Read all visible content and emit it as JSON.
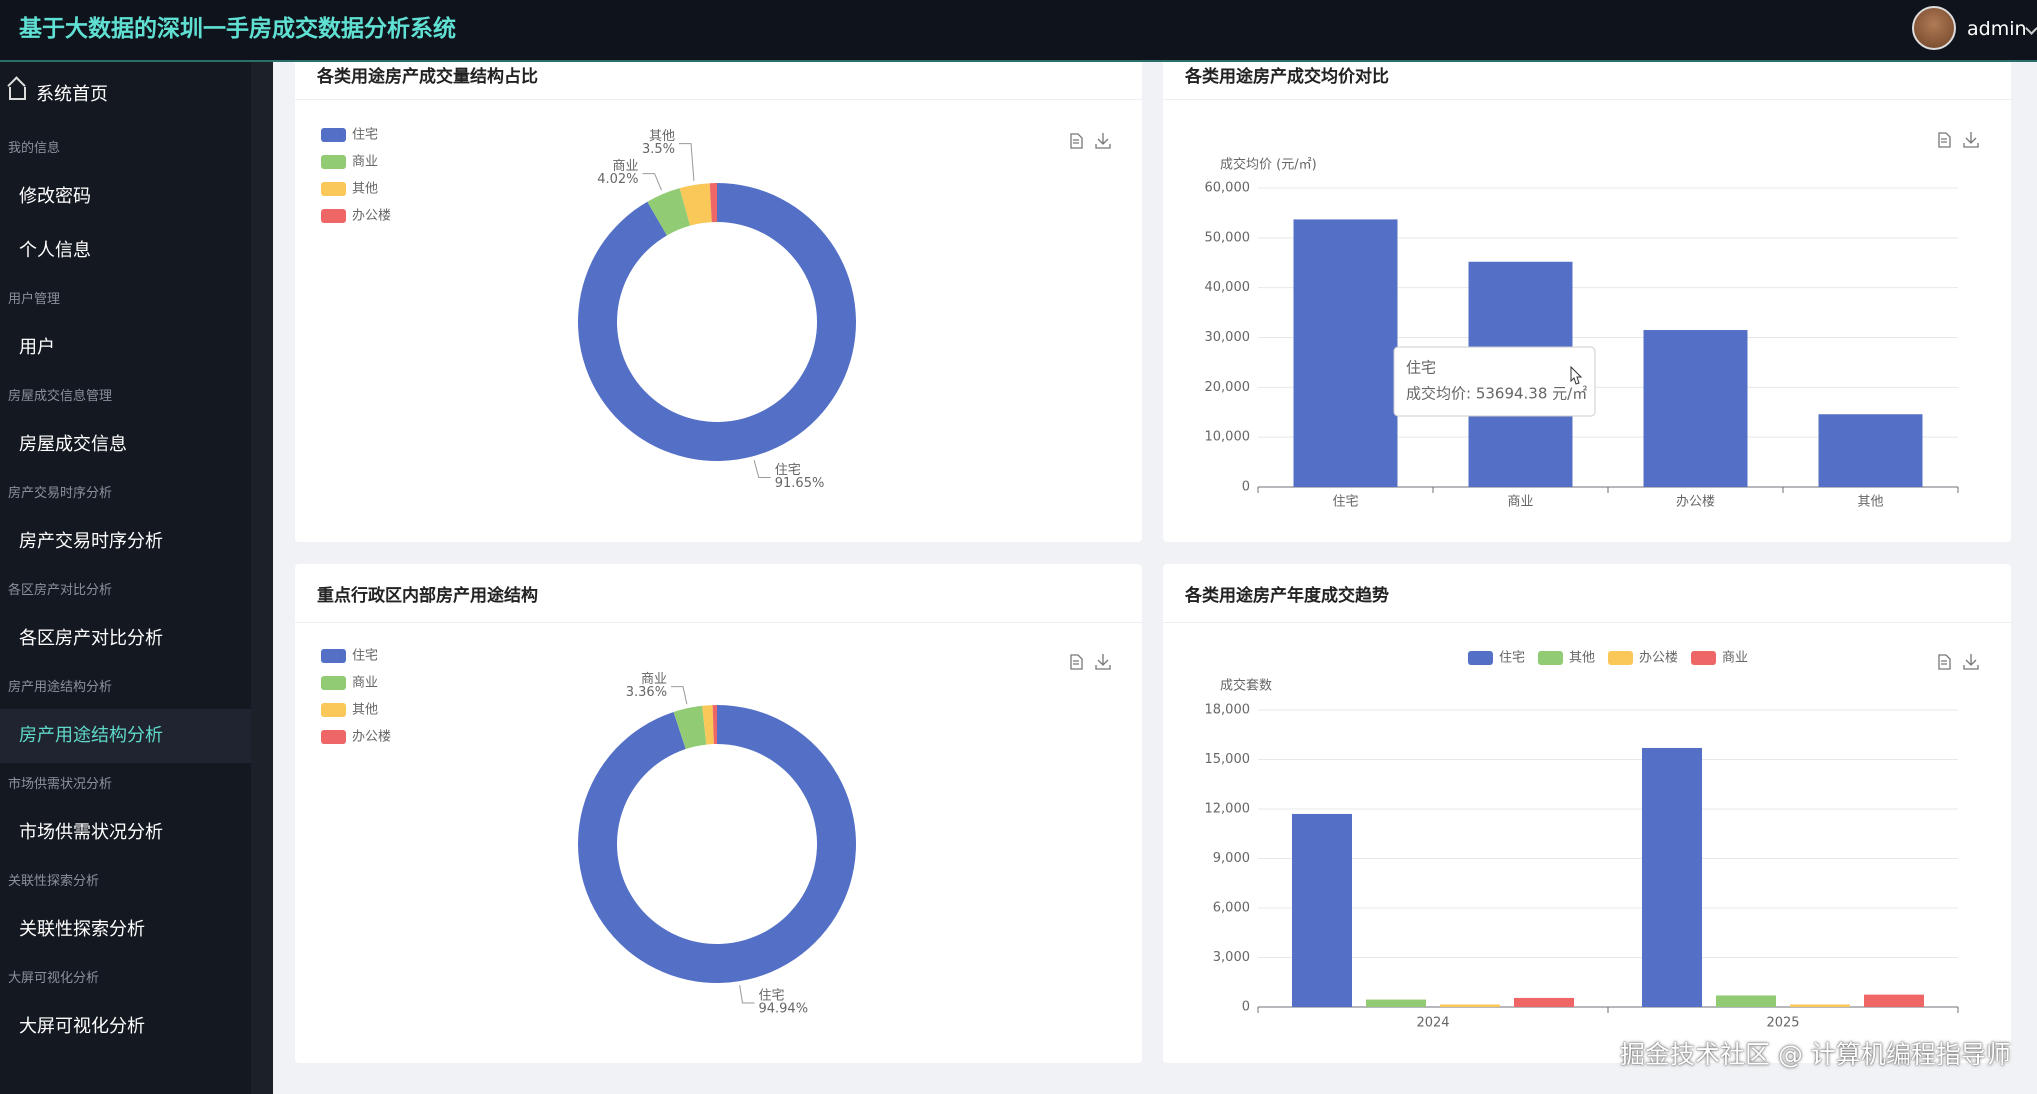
{
  "header": {
    "title": "基于大数据的深圳一手房成交数据分析系统",
    "user": "admin"
  },
  "sidebar": {
    "home": "系统首页",
    "groups": [
      {
        "label": "我的信息",
        "items": [
          "修改密码",
          "个人信息"
        ]
      },
      {
        "label": "用户管理",
        "items": [
          "用户"
        ]
      },
      {
        "label": "房屋成交信息管理",
        "items": [
          "房屋成交信息"
        ]
      },
      {
        "label": "房产交易时序分析",
        "items": [
          "房产交易时序分析"
        ]
      },
      {
        "label": "各区房产对比分析",
        "items": [
          "各区房产对比分析"
        ]
      },
      {
        "label": "房产用途结构分析",
        "items": [
          "房产用途结构分析"
        ]
      },
      {
        "label": "市场供需状况分析",
        "items": [
          "市场供需状况分析"
        ]
      },
      {
        "label": "关联性探索分析",
        "items": [
          "关联性探索分析"
        ]
      },
      {
        "label": "大屏可视化分析",
        "items": [
          "大屏可视化分析"
        ]
      }
    ],
    "active": {
      "group": 5,
      "item": 0
    }
  },
  "chart_data": [
    {
      "type": "pie",
      "title": "各类用途房产成交量结构占比",
      "categories": [
        "住宅",
        "商业",
        "其他",
        "办公楼"
      ],
      "values": [
        91.65,
        4.02,
        3.5,
        0.83
      ],
      "value_labels": [
        "91.65%",
        "4.02%",
        "3.5%",
        null
      ],
      "colors": [
        "#5470c6",
        "#91cc75",
        "#fac858",
        "#ee6666"
      ],
      "legend": "top-left"
    },
    {
      "type": "bar",
      "title": "各类用途房产成交均价对比",
      "y_label": "成交均价 (元/㎡)",
      "categories": [
        "住宅",
        "商业",
        "办公楼",
        "其他"
      ],
      "values": [
        53694.38,
        45200,
        31500,
        14600
      ],
      "color": "#5470c6",
      "ylim": [
        0,
        60000
      ],
      "yticks": [
        0,
        {
          "value": 10000,
          "label": "10,000"
        },
        {
          "value": 20000,
          "label": "20,000"
        },
        {
          "value": 30000,
          "label": "30,000"
        },
        {
          "value": 40000,
          "label": "40,000"
        },
        {
          "value": 50000,
          "label": "50,000"
        },
        {
          "value": 60000,
          "label": "60,000"
        }
      ],
      "grid": true,
      "tooltip": {
        "title": "住宅",
        "text": "成交均价: 53694.38 元/㎡"
      }
    },
    {
      "type": "pie",
      "title": "重点行政区内部房产用途结构",
      "categories": [
        "住宅",
        "商业",
        "其他",
        "办公楼"
      ],
      "values": [
        94.94,
        3.36,
        1.2,
        0.5
      ],
      "value_labels": [
        "94.94%",
        "3.36%",
        null,
        null
      ],
      "colors": [
        "#5470c6",
        "#91cc75",
        "#fac858",
        "#ee6666"
      ],
      "legend": "top-left"
    },
    {
      "type": "grouped_bar",
      "title": "各类用途房产年度成交趋势",
      "y_label": "成交套数",
      "categories": [
        "2024",
        "2025"
      ],
      "series": [
        {
          "name": "住宅",
          "color": "#5470c6",
          "values": [
            11700,
            15700
          ]
        },
        {
          "name": "其他",
          "color": "#91cc75",
          "values": [
            450,
            700
          ]
        },
        {
          "name": "办公楼",
          "color": "#fac858",
          "values": [
            150,
            150
          ]
        },
        {
          "name": "商业",
          "color": "#ee6666",
          "values": [
            550,
            750
          ]
        }
      ],
      "ylim": [
        0,
        18000
      ],
      "yticks": [
        0,
        {
          "value": 3000,
          "label": "3,000"
        },
        {
          "value": 6000,
          "label": "6,000"
        },
        {
          "value": 9000,
          "label": "9,000"
        },
        {
          "value": 12000,
          "label": "12,000"
        },
        {
          "value": 15000,
          "label": "15,000"
        },
        {
          "value": 18000,
          "label": "18,000"
        }
      ],
      "grid": true,
      "legend": "top-center"
    }
  ],
  "watermark": "掘金技术社区 @ 计算机编程指导师"
}
